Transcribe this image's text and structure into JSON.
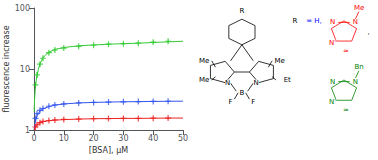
{
  "chart_data": {
    "type": "scatter",
    "xlabel": "[BSA], μM",
    "ylabel": "fluorescence increase",
    "xlim": [
      0,
      50
    ],
    "xticks": [
      0,
      10,
      20,
      30,
      40,
      50
    ],
    "ylim": [
      1,
      100
    ],
    "yticks": [
      1,
      10,
      100
    ],
    "log": "y",
    "grid": false,
    "series": [
      {
        "type": "line",
        "color": "#33cc33",
        "x": [
          0.05,
          0.2,
          0.4,
          0.7,
          1.0,
          1.5,
          2.0,
          3.0,
          4.0,
          5.0,
          7.0,
          10.0,
          15.0,
          20.0,
          25.0,
          30.0,
          35.0,
          40.0,
          45.0,
          50.0
        ],
        "values": [
          2.0,
          3.2,
          4.5,
          6.2,
          7.8,
          10.0,
          12.2,
          15.2,
          17.2,
          18.8,
          21.0,
          22.5,
          24.0,
          24.8,
          25.5,
          26.0,
          26.5,
          27.2,
          27.9,
          28.5
        ]
      },
      {
        "type": "line",
        "color": "#3355ee",
        "x": [
          0.05,
          0.3,
          0.7,
          1.0,
          2.0,
          3.0,
          5.0,
          7.0,
          10.0,
          15.0,
          20.0,
          25.0,
          30.0,
          35.0,
          40.0,
          45.0,
          50.0
        ],
        "values": [
          1.0,
          1.25,
          1.52,
          1.7,
          2.05,
          2.22,
          2.42,
          2.56,
          2.67,
          2.78,
          2.83,
          2.87,
          2.9,
          2.92,
          2.94,
          2.96,
          2.97
        ]
      },
      {
        "type": "line",
        "color": "#ee2222",
        "x": [
          0.05,
          0.3,
          0.7,
          1.0,
          2.0,
          3.0,
          5.0,
          7.0,
          10.0,
          15.0,
          20.0,
          25.0,
          30.0,
          35.0,
          40.0,
          45.0,
          50.0
        ],
        "values": [
          1.0,
          1.08,
          1.16,
          1.2,
          1.31,
          1.37,
          1.42,
          1.45,
          1.48,
          1.51,
          1.53,
          1.54,
          1.55,
          1.55,
          1.56,
          1.57,
          1.57
        ]
      },
      {
        "type": "scatter",
        "marker": "plus",
        "color": "#33cc33",
        "x": [
          0.5,
          1,
          2,
          3,
          5,
          7,
          10,
          15,
          20,
          25,
          30,
          35,
          40,
          45
        ],
        "values": [
          5.5,
          8.0,
          12.0,
          15.0,
          18.5,
          20.5,
          22.0,
          23.5,
          24.5,
          25.5,
          26.0,
          26.5,
          27.5,
          28.5
        ],
        "yerr": [
          0.6,
          0.8,
          0.9,
          1.0,
          1.1,
          1.2,
          1.0,
          1.1,
          1.2,
          1.3,
          1.3,
          1.4,
          1.6,
          2.0
        ]
      },
      {
        "type": "scatter",
        "marker": "plus",
        "color": "#3355ee",
        "x": [
          0.5,
          1,
          2,
          3,
          5,
          7,
          10,
          15,
          20,
          25,
          30,
          35,
          40,
          45
        ],
        "values": [
          1.55,
          1.85,
          2.1,
          2.25,
          2.45,
          2.58,
          2.68,
          2.78,
          2.83,
          2.87,
          2.9,
          2.92,
          2.94,
          2.96
        ],
        "yerr": [
          0.06,
          0.08,
          0.09,
          0.09,
          0.09,
          0.09,
          0.1,
          0.1,
          0.1,
          0.1,
          0.1,
          0.1,
          0.1,
          0.1
        ]
      },
      {
        "type": "scatter",
        "marker": "plus",
        "color": "#ee2222",
        "x": [
          0.5,
          1,
          2,
          3,
          5,
          7,
          10,
          15,
          20,
          25,
          30,
          35,
          40,
          45
        ],
        "values": [
          1.12,
          1.22,
          1.32,
          1.38,
          1.43,
          1.46,
          1.49,
          1.51,
          1.53,
          1.54,
          1.55,
          1.55,
          1.56,
          1.57
        ],
        "yerr": [
          0.04,
          0.05,
          0.05,
          0.05,
          0.05,
          0.05,
          0.05,
          0.05,
          0.05,
          0.05,
          0.05,
          0.05,
          0.05,
          0.06
        ]
      }
    ],
    "annotations": [
      {
        "text": "R",
        "color": "black"
      },
      {
        "text": "N",
        "color": "black"
      },
      {
        "text": "N",
        "color": "black"
      },
      {
        "text": "B",
        "color": "black"
      },
      {
        "text": "F",
        "color": "black"
      },
      {
        "text": "F",
        "color": "black"
      },
      {
        "text": "Me",
        "color": "black"
      },
      {
        "text": "Me",
        "color": "black"
      },
      {
        "text": "Me",
        "color": "black"
      },
      {
        "text": "Et",
        "color": "black"
      },
      {
        "text": "R",
        "color": "black"
      },
      {
        "text": "= H,",
        "color": "blue"
      },
      {
        "text": "Me",
        "color": "red"
      },
      {
        "text": "N",
        "color": "red"
      },
      {
        "text": "N",
        "color": "red"
      },
      {
        "text": "N'",
        "color": "red"
      },
      {
        "text": "≈",
        "color": "red"
      },
      {
        "text": ",",
        "color": "black"
      },
      {
        "text": "Bn",
        "color": "green"
      },
      {
        "text": "N",
        "color": "green"
      },
      {
        "text": "N",
        "color": "green"
      },
      {
        "text": "N'",
        "color": "green"
      },
      {
        "text": "≈",
        "color": "green"
      }
    ]
  }
}
